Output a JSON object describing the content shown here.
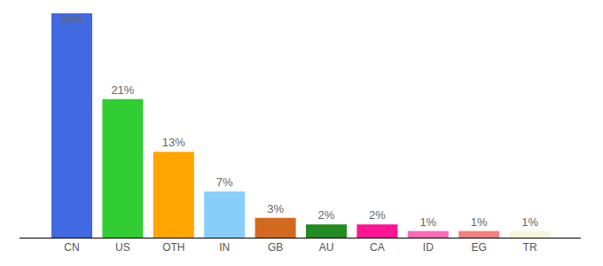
{
  "chart_data": {
    "type": "bar",
    "categories": [
      "CN",
      "US",
      "OTH",
      "IN",
      "GB",
      "AU",
      "CA",
      "ID",
      "EG",
      "TR"
    ],
    "values": [
      34,
      21,
      13,
      7,
      3,
      2,
      2,
      1,
      1,
      1
    ],
    "value_labels": [
      "34%",
      "21%",
      "13%",
      "7%",
      "3%",
      "2%",
      "2%",
      "1%",
      "1%",
      "1%"
    ],
    "colors": [
      "#4169e1",
      "#32cd32",
      "#ffa500",
      "#87cefa",
      "#d2691e",
      "#228b22",
      "#ff1493",
      "#ff69b4",
      "#f08080",
      "#f5f5dc"
    ],
    "ylim": [
      0,
      34
    ],
    "data_labels": true,
    "tick_labels": "x",
    "grid": false
  }
}
